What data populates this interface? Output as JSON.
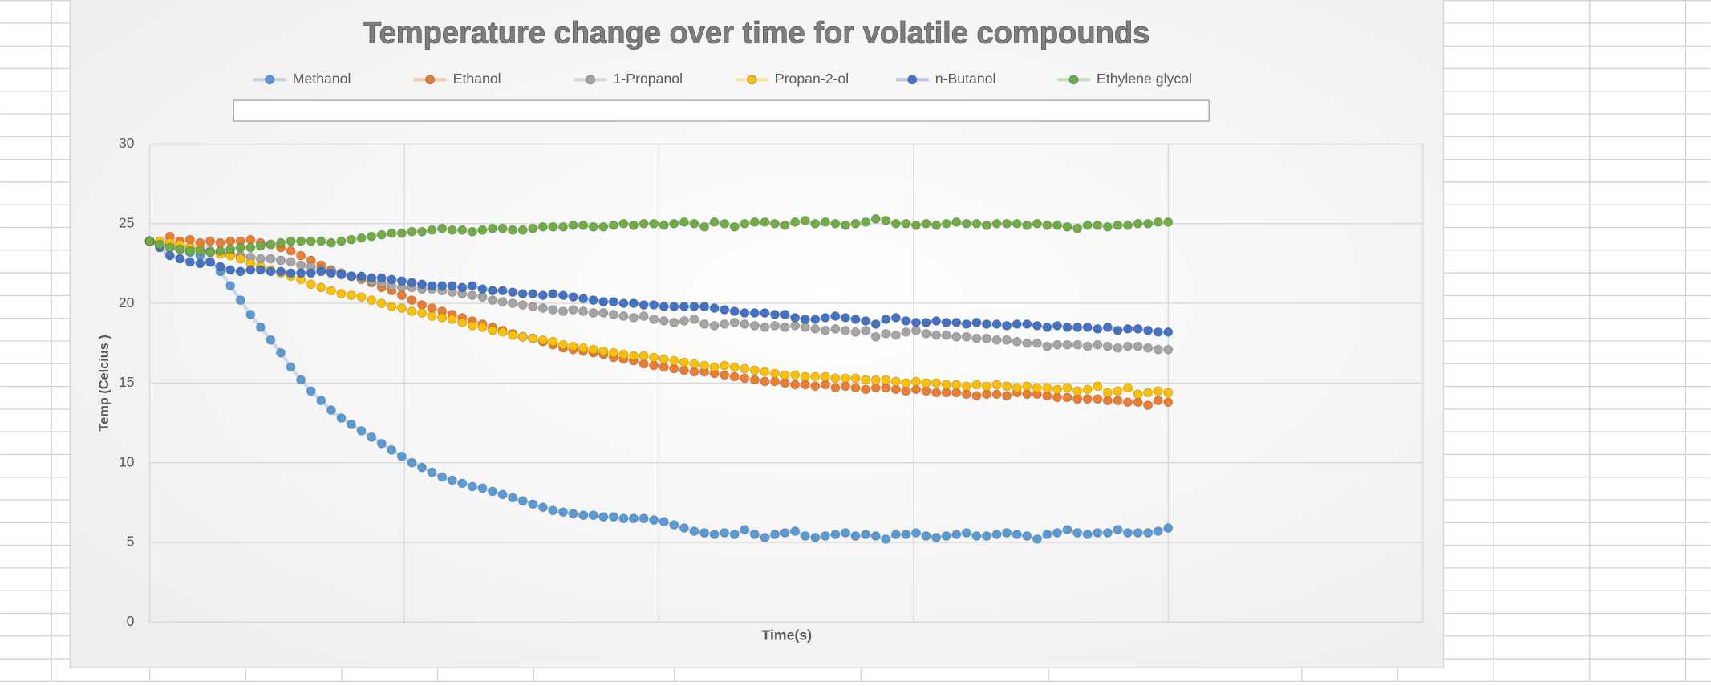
{
  "chart_data": {
    "type": "line",
    "title": "Temperature change over time for volatile compounds",
    "x_label": "Time(s)",
    "y_label": "Temp (Celcius )",
    "ylim": [
      0,
      30
    ],
    "yticks": [
      0,
      5,
      10,
      15,
      20,
      25,
      30
    ],
    "grid": true,
    "legend": "top",
    "series": [
      {
        "name": "Methanol",
        "color": "#5b9bd5",
        "values": [
          23.9,
          23.7,
          23.5,
          23.4,
          23.2,
          23.0,
          22.6,
          22.0,
          21.1,
          20.2,
          19.3,
          18.5,
          17.7,
          16.9,
          16.0,
          15.2,
          14.5,
          13.9,
          13.3,
          12.8,
          12.4,
          12.0,
          11.6,
          11.2,
          10.8,
          10.4,
          10.0,
          9.7,
          9.4,
          9.1,
          8.9,
          8.7,
          8.5,
          8.4,
          8.2,
          8.0,
          7.8,
          7.6,
          7.4,
          7.2,
          7.0,
          6.9,
          6.8,
          6.7,
          6.7,
          6.6,
          6.6,
          6.5,
          6.5,
          6.5,
          6.4,
          6.3,
          6.1,
          5.9,
          5.7,
          5.6,
          5.5,
          5.6,
          5.5,
          5.8,
          5.5,
          5.3,
          5.5,
          5.6,
          5.7,
          5.4,
          5.3,
          5.4,
          5.5,
          5.6,
          5.4,
          5.5,
          5.4,
          5.2,
          5.5,
          5.5,
          5.6,
          5.4,
          5.3,
          5.4,
          5.5,
          5.6,
          5.4,
          5.4,
          5.5,
          5.6,
          5.5,
          5.4,
          5.2,
          5.5,
          5.6,
          5.8,
          5.6,
          5.5,
          5.6,
          5.6,
          5.8,
          5.6,
          5.6,
          5.6,
          5.7,
          5.9
        ]
      },
      {
        "name": "Ethanol",
        "color": "#ed7d31",
        "values": [
          23.9,
          23.8,
          24.2,
          23.9,
          24.0,
          23.8,
          23.9,
          23.8,
          23.9,
          23.9,
          24.0,
          23.8,
          23.7,
          23.5,
          23.3,
          23.0,
          22.7,
          22.4,
          22.1,
          21.9,
          21.7,
          21.5,
          21.3,
          21.0,
          20.8,
          20.5,
          20.2,
          19.9,
          19.7,
          19.5,
          19.3,
          19.1,
          18.9,
          18.7,
          18.5,
          18.3,
          18.1,
          17.9,
          17.8,
          17.6,
          17.4,
          17.2,
          17.1,
          17.0,
          16.9,
          16.8,
          16.6,
          16.5,
          16.4,
          16.2,
          16.1,
          16.0,
          15.9,
          15.8,
          15.7,
          15.7,
          15.6,
          15.5,
          15.4,
          15.3,
          15.2,
          15.1,
          15.1,
          15.0,
          14.9,
          14.9,
          14.8,
          14.9,
          14.7,
          14.8,
          14.7,
          14.6,
          14.7,
          14.7,
          14.6,
          14.5,
          14.6,
          14.5,
          14.4,
          14.4,
          14.4,
          14.3,
          14.2,
          14.3,
          14.3,
          14.2,
          14.4,
          14.3,
          14.3,
          14.2,
          14.1,
          14.1,
          14.0,
          14.0,
          14.0,
          13.9,
          13.9,
          13.8,
          13.8,
          13.6,
          13.9,
          13.8
        ]
      },
      {
        "name": "1-Propanol",
        "color": "#a5a5a5",
        "values": [
          23.9,
          23.8,
          23.7,
          23.6,
          23.5,
          23.4,
          23.3,
          23.2,
          23.1,
          23.0,
          22.9,
          22.8,
          22.8,
          22.7,
          22.6,
          22.4,
          22.3,
          22.1,
          22.0,
          21.9,
          21.7,
          21.6,
          21.4,
          21.3,
          21.1,
          21.0,
          21.0,
          20.9,
          20.9,
          20.8,
          20.7,
          20.6,
          20.5,
          20.4,
          20.2,
          20.1,
          20.0,
          19.9,
          19.8,
          19.7,
          19.6,
          19.5,
          19.6,
          19.5,
          19.4,
          19.4,
          19.3,
          19.2,
          19.1,
          19.2,
          19.0,
          18.9,
          18.8,
          18.9,
          19.0,
          18.7,
          18.6,
          18.7,
          18.8,
          18.7,
          18.6,
          18.5,
          18.6,
          18.5,
          18.6,
          18.5,
          18.4,
          18.3,
          18.4,
          18.3,
          18.2,
          18.3,
          17.9,
          18.1,
          18.0,
          18.2,
          18.3,
          18.1,
          18.0,
          18.0,
          17.9,
          17.9,
          17.8,
          17.8,
          17.7,
          17.7,
          17.6,
          17.5,
          17.5,
          17.3,
          17.4,
          17.4,
          17.4,
          17.3,
          17.4,
          17.3,
          17.2,
          17.3,
          17.3,
          17.2,
          17.1,
          17.1
        ]
      },
      {
        "name": "Propan-2-ol",
        "color": "#ffc000",
        "values": [
          23.9,
          23.9,
          23.8,
          23.7,
          23.5,
          23.4,
          23.2,
          23.1,
          23.0,
          22.8,
          22.5,
          22.3,
          22.1,
          21.9,
          21.7,
          21.5,
          21.2,
          21.0,
          20.8,
          20.6,
          20.5,
          20.4,
          20.2,
          20.0,
          19.8,
          19.7,
          19.5,
          19.4,
          19.2,
          19.1,
          19.0,
          18.8,
          18.6,
          18.5,
          18.3,
          18.2,
          18.0,
          17.9,
          17.8,
          17.7,
          17.6,
          17.4,
          17.3,
          17.2,
          17.1,
          17.0,
          16.9,
          16.8,
          16.7,
          16.7,
          16.6,
          16.5,
          16.4,
          16.3,
          16.2,
          16.1,
          16.0,
          16.1,
          16.0,
          15.9,
          15.8,
          15.7,
          15.6,
          15.5,
          15.5,
          15.4,
          15.4,
          15.4,
          15.3,
          15.3,
          15.3,
          15.2,
          15.2,
          15.2,
          15.1,
          15.0,
          15.1,
          15.0,
          15.0,
          14.9,
          14.9,
          14.8,
          14.9,
          14.8,
          14.9,
          14.8,
          14.7,
          14.8,
          14.7,
          14.7,
          14.6,
          14.7,
          14.5,
          14.6,
          14.8,
          14.4,
          14.5,
          14.7,
          14.3,
          14.4,
          14.5,
          14.4
        ]
      },
      {
        "name": "n-Butanol",
        "color": "#4472c4",
        "values": [
          23.9,
          23.5,
          23.0,
          22.8,
          22.6,
          22.5,
          22.6,
          22.3,
          22.1,
          22.0,
          22.1,
          22.1,
          22.0,
          22.0,
          21.9,
          21.9,
          21.9,
          22.0,
          21.9,
          21.8,
          21.7,
          21.7,
          21.6,
          21.6,
          21.5,
          21.4,
          21.3,
          21.2,
          21.1,
          21.1,
          21.1,
          21.0,
          21.1,
          20.9,
          20.8,
          20.8,
          20.7,
          20.6,
          20.6,
          20.5,
          20.6,
          20.5,
          20.4,
          20.3,
          20.2,
          20.1,
          20.1,
          20.0,
          20.0,
          19.9,
          19.9,
          19.8,
          19.8,
          19.8,
          19.8,
          19.8,
          19.7,
          19.6,
          19.5,
          19.4,
          19.4,
          19.4,
          19.3,
          19.3,
          19.1,
          19.0,
          19.0,
          19.1,
          19.2,
          19.1,
          19.0,
          18.9,
          18.7,
          19.0,
          19.1,
          18.9,
          18.8,
          18.8,
          18.9,
          18.8,
          18.8,
          18.7,
          18.8,
          18.7,
          18.7,
          18.6,
          18.7,
          18.7,
          18.6,
          18.5,
          18.6,
          18.5,
          18.5,
          18.5,
          18.4,
          18.5,
          18.3,
          18.4,
          18.4,
          18.3,
          18.2,
          18.2
        ]
      },
      {
        "name": "Ethylene glycol",
        "color": "#70ad47",
        "values": [
          23.9,
          23.7,
          23.5,
          23.4,
          23.3,
          23.3,
          23.2,
          23.3,
          23.4,
          23.5,
          23.5,
          23.6,
          23.7,
          23.8,
          23.9,
          23.9,
          23.9,
          23.9,
          23.8,
          23.9,
          24.0,
          24.1,
          24.2,
          24.3,
          24.4,
          24.4,
          24.5,
          24.5,
          24.6,
          24.7,
          24.6,
          24.6,
          24.5,
          24.6,
          24.7,
          24.7,
          24.6,
          24.6,
          24.7,
          24.8,
          24.8,
          24.8,
          24.9,
          24.9,
          24.8,
          24.8,
          24.9,
          25.0,
          24.9,
          25.0,
          25.0,
          24.9,
          25.0,
          25.1,
          25.0,
          24.8,
          25.1,
          25.0,
          24.8,
          25.0,
          25.1,
          25.1,
          25.0,
          24.9,
          25.1,
          25.2,
          25.0,
          25.1,
          25.0,
          24.9,
          25.0,
          25.1,
          25.3,
          25.2,
          25.0,
          25.0,
          24.9,
          25.0,
          24.9,
          25.0,
          25.1,
          25.0,
          25.0,
          24.9,
          25.0,
          25.0,
          25.0,
          24.9,
          25.0,
          24.9,
          24.9,
          24.8,
          24.7,
          24.9,
          24.9,
          24.8,
          24.9,
          24.9,
          25.0,
          25.0,
          25.1,
          25.1
        ]
      }
    ]
  }
}
